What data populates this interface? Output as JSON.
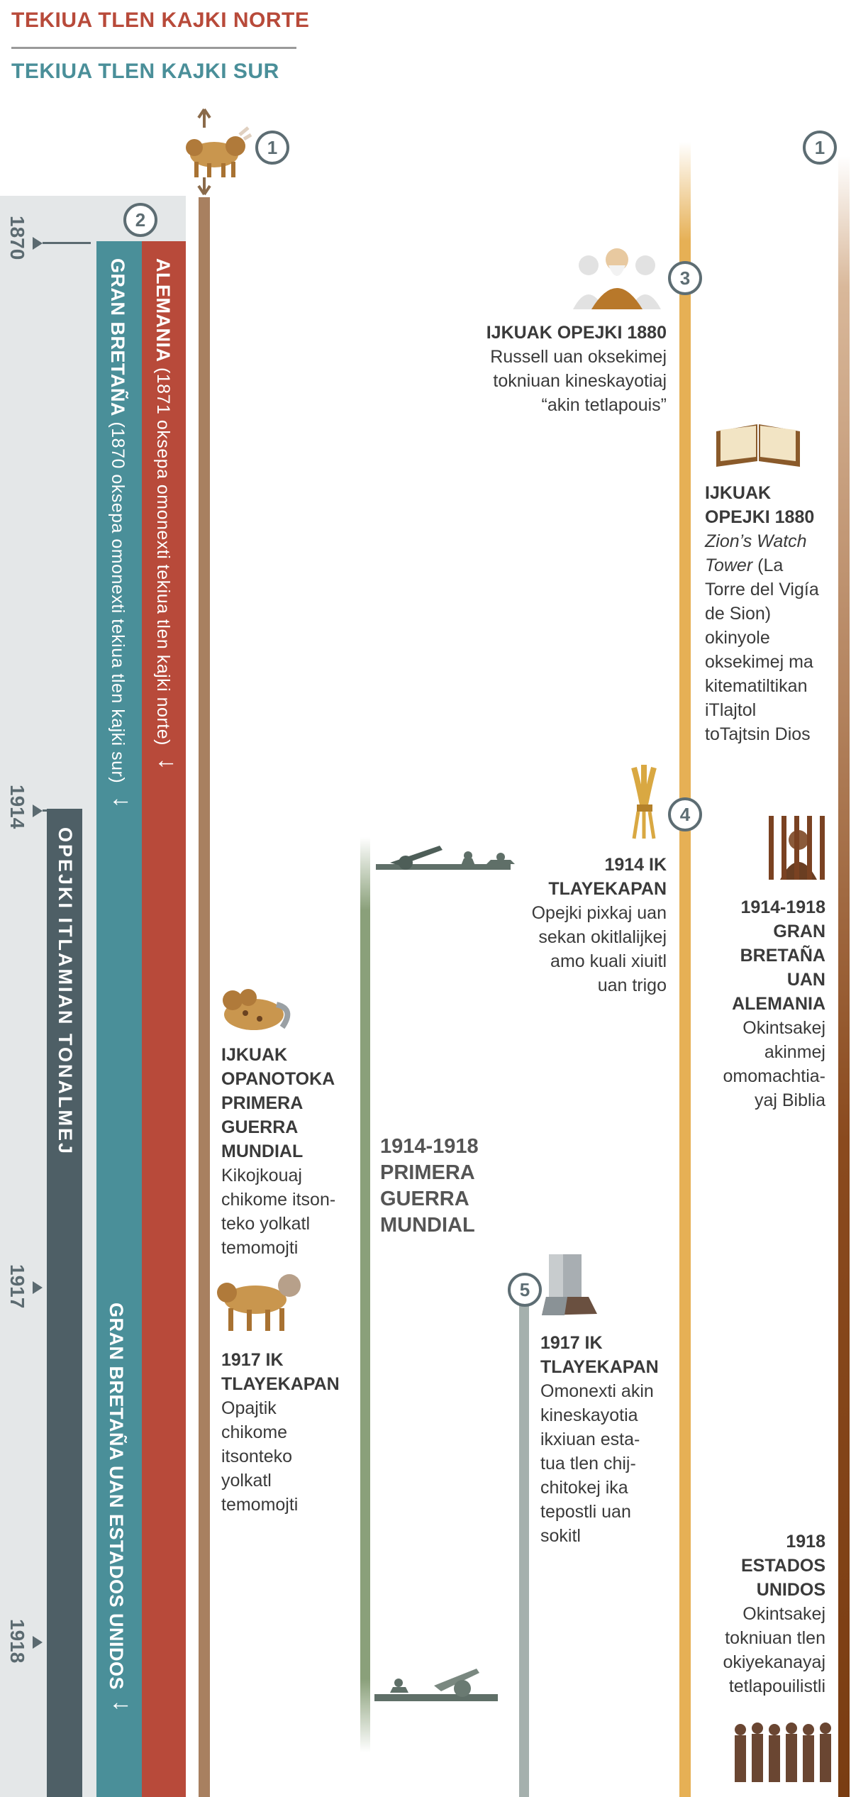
{
  "legend": {
    "north": "TEKIUA TLEN KAJKI NORTE",
    "south": "TEKIUA TLEN KAJKI SUR"
  },
  "years": [
    "1870",
    "1914",
    "1917",
    "1918"
  ],
  "bars": {
    "germany_title": "ALEMANIA",
    "germany_note": "(1871 oksepa omonexti tekiua tlen kajki norte)",
    "britain_title": "GRAN BRETAÑA",
    "britain_note": "(1870 oksepa omonexti tekiua tlen kajki sur)",
    "last_days": "OPEJKI ITLAMIAN TONALMEJ",
    "anglo_american": "GRAN BRETAÑA UAN ESTADOS UNIDOS",
    "arrow": "↓"
  },
  "markers": [
    "1",
    "2",
    "3",
    "4",
    "5",
    "1"
  ],
  "events": {
    "e1880_russell": {
      "title": "IJKUAK OPEJKI 1880",
      "text": [
        "Russell uan oksekimej",
        "tokniuan kineskayotiaj",
        "“akin tetlapouis”"
      ]
    },
    "e1880_tower": {
      "title": [
        "IJKUAK",
        "OPEJKI 1880"
      ],
      "italic": [
        "Zion’s Watch",
        "Tower"
      ],
      "text": [
        "(La",
        "Torre del Vigía",
        "de Sion)",
        "okinyole",
        "oksekimej ma",
        "kitematiltikan",
        "iTlajtol",
        "toTajtsin Dios"
      ]
    },
    "e1914_harvest": {
      "title": [
        "1914 IK",
        "TLAYEKAPAN"
      ],
      "text": [
        "Opejki pixkaj uan",
        "sekan okitlalijkej",
        "amo kuali xiuitl",
        "uan trigo"
      ]
    },
    "e1914_1918_prison": {
      "title": [
        "1914-1918",
        "GRAN",
        "BRETAÑA",
        "UAN",
        "ALEMANIA"
      ],
      "text": [
        "Okintsakej",
        "akinmej",
        "omomachtia-",
        "yaj Biblia"
      ]
    },
    "e_wound": {
      "title": [
        "IJKUAK",
        "OPANOTOKA",
        "PRIMERA",
        "GUERRA",
        "MUNDIAL"
      ],
      "text": [
        "Kikojkouaj",
        "chikome itson-",
        "teko yolkatl",
        "temomojti"
      ]
    },
    "e_ww1": {
      "title": [
        "1914-1918",
        "PRIMERA",
        "GUERRA",
        "MUNDIAL"
      ]
    },
    "e1917_beast": {
      "title": [
        "1917 IK",
        "TLAYEKAPAN"
      ],
      "text": [
        "Opajtik",
        "chikome",
        "itsonteko",
        "yolkatl",
        "temomojti"
      ]
    },
    "e1917_feet": {
      "title": [
        "1917 IK",
        "TLAYEKAPAN"
      ],
      "text": [
        "Omonexti akin",
        "kineskayotia",
        "ikxiuan esta-",
        "tua tlen chij-",
        "chitokej ika",
        "tepostli uan",
        "sokitl"
      ]
    },
    "e1918_us": {
      "title": [
        "1918",
        "ESTADOS",
        "UNIDOS"
      ],
      "text": [
        "Okintsakej",
        "tokniuan tlen",
        "okiyekanayaj",
        "tetlapouilistli"
      ]
    }
  },
  "colors": {
    "north": "#b84a3a",
    "south": "#4a8f99",
    "last_days": "#4e5f66",
    "gold_line": "#e6b055",
    "brown_line": "#8a4a1e",
    "war_line": "#8aa07a",
    "feet_line": "#a5b0ad"
  },
  "icons": [
    "lion-beast-icon",
    "russell-portrait-icon",
    "open-book-icon",
    "wheat-sheaf-icon",
    "prisoner-bars-icon",
    "wounded-beast-icon",
    "artillery-soldiers-icon",
    "healed-beast-icon",
    "iron-clay-feet-icon",
    "prisoners-group-icon"
  ]
}
